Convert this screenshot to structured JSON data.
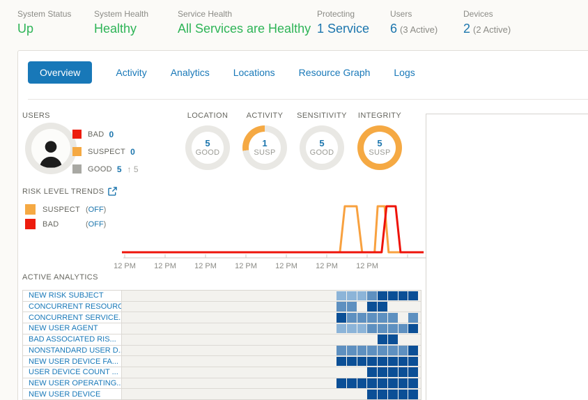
{
  "topbar": {
    "stats": [
      {
        "label": "System Status",
        "value": "Up",
        "style": "green"
      },
      {
        "label": "System Health",
        "value": "Healthy",
        "style": "green"
      },
      {
        "label": "Service Health",
        "value": "All Services are Healthy",
        "style": "green"
      },
      {
        "label": "Protecting",
        "value": "1 Service",
        "style": "blue"
      },
      {
        "label": "Users",
        "value": "6",
        "suffix": "(3 Active)",
        "style": "blue"
      },
      {
        "label": "Devices",
        "value": "2",
        "suffix": "(2 Active)",
        "style": "blue"
      }
    ]
  },
  "tabs": {
    "items": [
      {
        "label": "Overview",
        "active": true
      },
      {
        "label": "Activity",
        "active": false
      },
      {
        "label": "Analytics",
        "active": false
      },
      {
        "label": "Locations",
        "active": false
      },
      {
        "label": "Resource Graph",
        "active": false
      },
      {
        "label": "Logs",
        "active": false
      }
    ]
  },
  "users_panel": {
    "title": "USERS",
    "legend": [
      {
        "label": "BAD",
        "value": "0",
        "swatch": "#ed1c0d"
      },
      {
        "label": "SUSPECT",
        "value": "0",
        "swatch": "#f5a943"
      },
      {
        "label": "GOOD",
        "value": "5",
        "swatch": "#a8a8a3",
        "delta_arrow": "↑",
        "delta": "5"
      }
    ]
  },
  "gauges": [
    {
      "title": "LOCATION",
      "value": "5",
      "status": "GOOD",
      "ring": "good"
    },
    {
      "title": "ACTIVITY",
      "value": "1",
      "status": "SUSP",
      "ring": "partial"
    },
    {
      "title": "SENSITIVITY",
      "value": "5",
      "status": "GOOD",
      "ring": "good"
    },
    {
      "title": "INTEGRITY",
      "value": "5",
      "status": "SUSP",
      "ring": "susp"
    }
  ],
  "risk_trends": {
    "title": "RISK LEVEL TRENDS",
    "legend": [
      {
        "label": "SUSPECT",
        "state": "OFF",
        "swatch": "#f5a943"
      },
      {
        "label": "BAD",
        "state": "OFF",
        "swatch": "#ed1c0d"
      }
    ],
    "x_labels": [
      "12 PM",
      "12 PM",
      "12 PM",
      "12 PM",
      "12 PM",
      "12 PM",
      "12 PM"
    ],
    "chart_data": {
      "type": "line",
      "xlabel": "time",
      "ylim": [
        0,
        1
      ],
      "series": [
        {
          "name": "SUSPECT",
          "color": "#f8a13f",
          "points": [
            [
              0,
              0
            ],
            [
              0.716,
              0
            ],
            [
              0.732,
              1
            ],
            [
              0.771,
              1
            ],
            [
              0.789,
              0
            ],
            [
              0.83,
              0
            ],
            [
              0.84,
              1
            ],
            [
              0.863,
              1
            ],
            [
              0.876,
              0
            ],
            [
              0.972,
              0
            ]
          ]
        },
        {
          "name": "BAD",
          "color": "#ee1309",
          "points": [
            [
              0,
              0
            ],
            [
              0.853,
              0
            ],
            [
              0.869,
              1
            ],
            [
              0.899,
              1
            ],
            [
              0.915,
              0
            ],
            [
              0.991,
              0
            ]
          ]
        }
      ]
    }
  },
  "active_analytics": {
    "title": "ACTIVE ANALYTICS",
    "palette": {
      "0": "transparent",
      "1": "#8cb4d8",
      "2": "#5e90c0",
      "3": "#0b4f96"
    },
    "rows": [
      {
        "label": "NEW RISK SUBJECT",
        "cells": [
          1,
          1,
          1,
          2,
          3,
          3,
          3,
          3
        ]
      },
      {
        "label": "CONCURRENT RESOURC...",
        "cells": [
          2,
          2,
          0,
          3,
          3,
          0,
          0,
          0
        ]
      },
      {
        "label": "CONCURRENT SERVICE...",
        "cells": [
          3,
          2,
          2,
          2,
          2,
          2,
          0,
          2
        ]
      },
      {
        "label": "NEW USER AGENT",
        "cells": [
          1,
          1,
          1,
          2,
          2,
          2,
          2,
          3
        ]
      },
      {
        "label": "BAD ASSOCIATED RIS...",
        "cells": [
          0,
          0,
          0,
          0,
          3,
          3,
          0,
          0
        ]
      },
      {
        "label": "NONSTANDARD USER D...",
        "cells": [
          2,
          2,
          2,
          2,
          2,
          2,
          2,
          3
        ]
      },
      {
        "label": "NEW USER DEVICE FA...",
        "cells": [
          3,
          3,
          3,
          3,
          3,
          3,
          3,
          3
        ]
      },
      {
        "label": "USER DEVICE COUNT ...",
        "cells": [
          0,
          0,
          0,
          3,
          3,
          3,
          3,
          3
        ]
      },
      {
        "label": "NEW USER OPERATING...",
        "cells": [
          3,
          3,
          3,
          3,
          3,
          3,
          3,
          3
        ]
      },
      {
        "label": "NEW USER DEVICE",
        "cells": [
          0,
          0,
          0,
          3,
          3,
          3,
          3,
          3
        ]
      }
    ]
  },
  "colors": {
    "accent_blue": "#1878b8",
    "link_blue": "#1b75ad",
    "green": "#2eb457",
    "orange": "#f5a943",
    "red": "#ed1c0d",
    "gauge_gray": "#e9e8e4",
    "label_gray": "#8b8b86"
  }
}
